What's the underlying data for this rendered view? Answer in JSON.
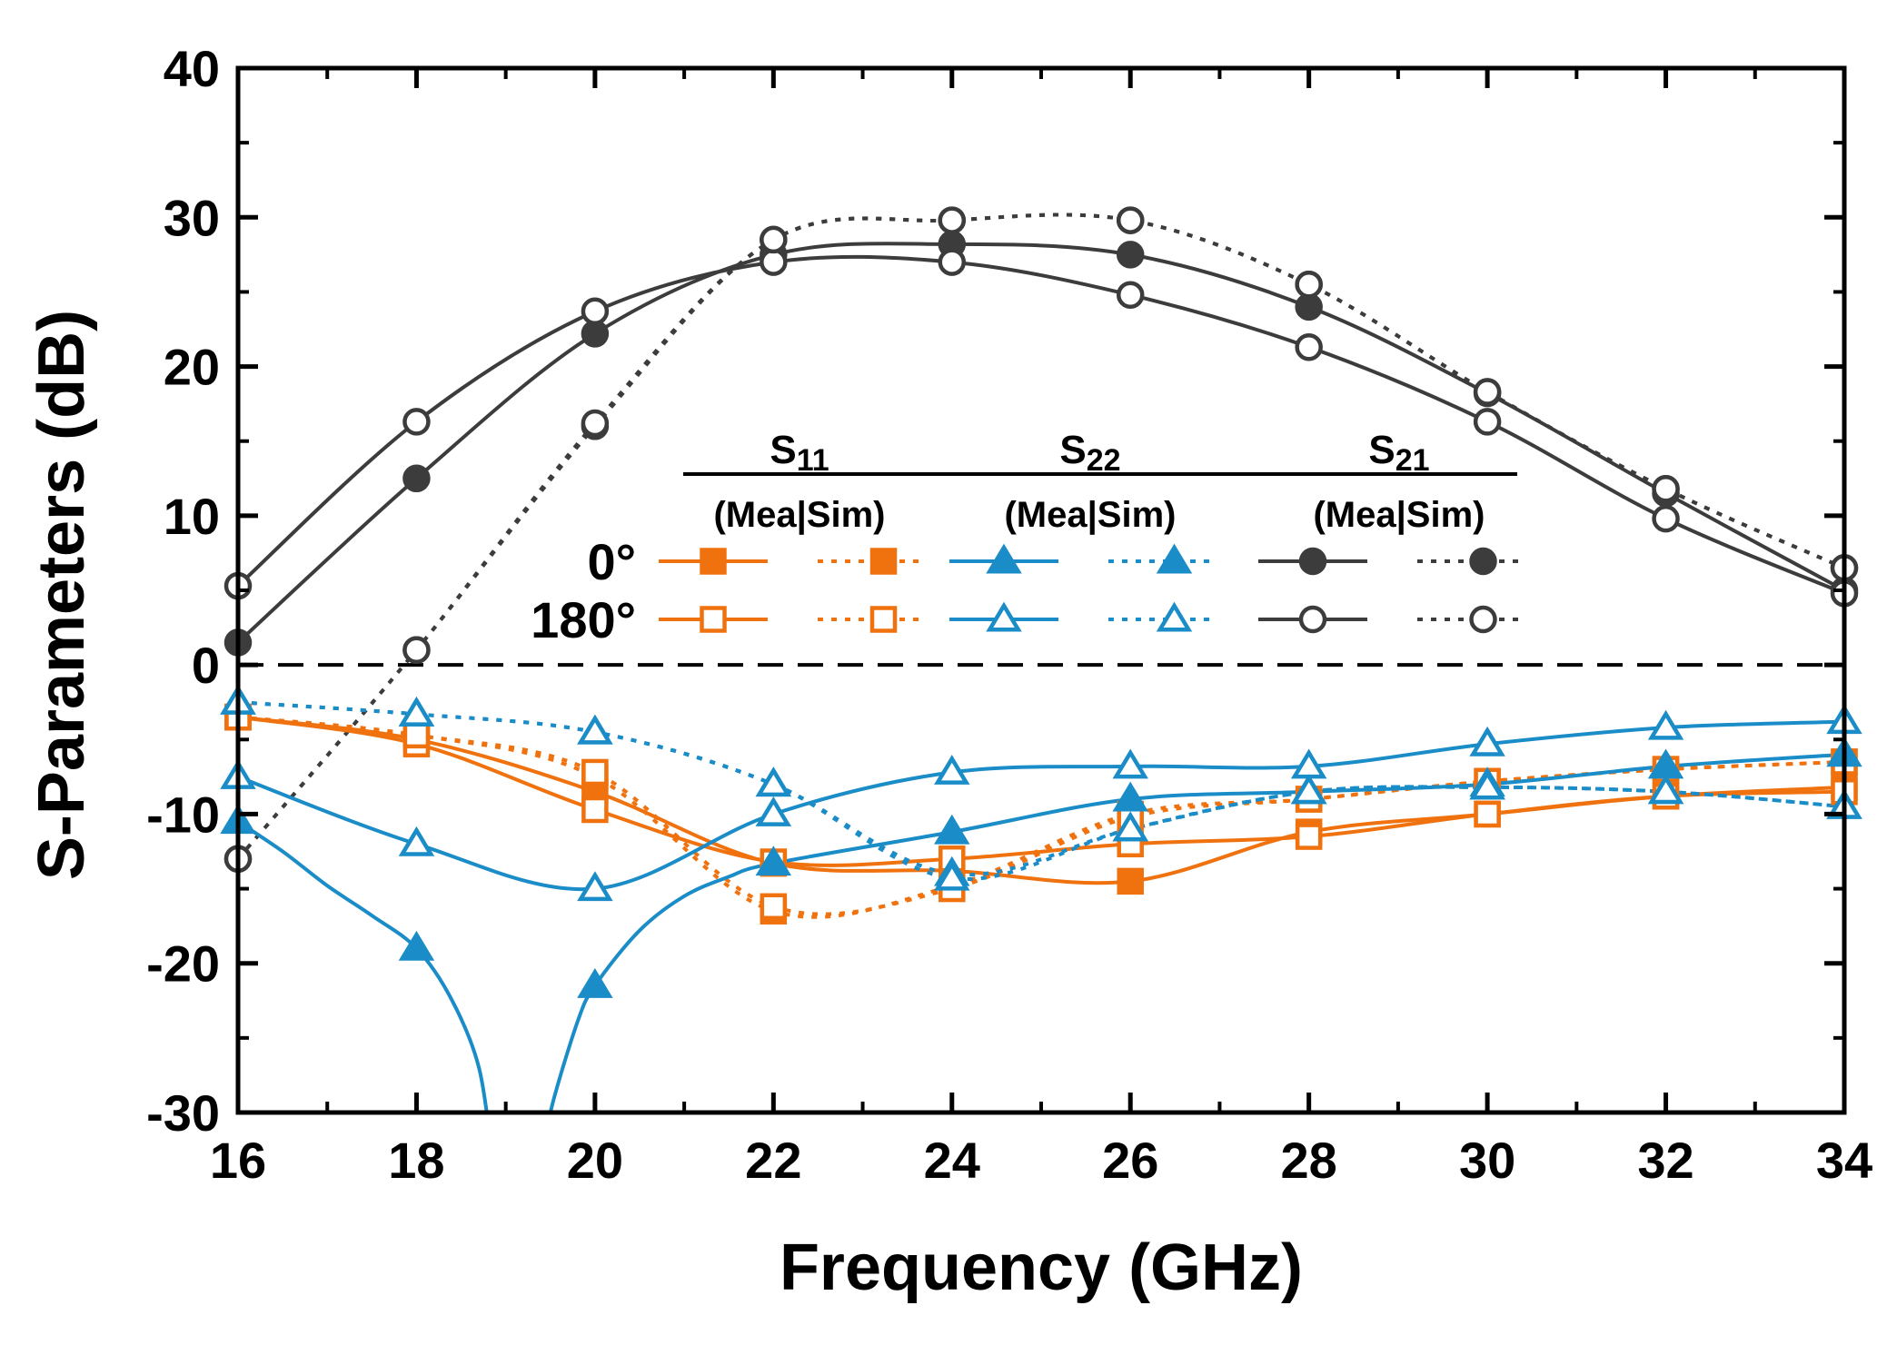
{
  "chart_data": {
    "type": "line",
    "xlabel": "Frequency (GHz)",
    "ylabel": "S-Parameters (dB)",
    "xlim": [
      16,
      34
    ],
    "ylim": [
      -30,
      40
    ],
    "xticks": [
      16,
      18,
      20,
      22,
      24,
      26,
      28,
      30,
      32,
      34
    ],
    "yticks": [
      -30,
      -20,
      -10,
      0,
      10,
      20,
      30,
      40
    ],
    "reference_line": {
      "y": 0,
      "style": "dashed"
    },
    "grid": false,
    "legend": {
      "placement": "center",
      "groups": [
        {
          "name": "S",
          "sub": "11",
          "color": "#f0720f",
          "marker": "square"
        },
        {
          "name": "S",
          "sub": "22",
          "color": "#1a8cc7",
          "marker": "triangle"
        },
        {
          "name": "S",
          "sub": "21",
          "color": "#3c3c3c",
          "marker": "circle"
        }
      ],
      "column_label": "(Mea|Sim)",
      "rows": [
        {
          "label": "0°",
          "filled": true
        },
        {
          "label": "180°",
          "filled": false
        }
      ]
    },
    "colors": {
      "s11": "#f0720f",
      "s22": "#1a8cc7",
      "s21": "#3c3c3c",
      "axis": "#000000"
    },
    "series": [
      {
        "param": "S21",
        "state": "0",
        "kind": "Mea",
        "color": "#3c3c3c",
        "marker": "circle",
        "filled": true,
        "dashed": false,
        "x": [
          16,
          18,
          20,
          22,
          24,
          26,
          28,
          30,
          32,
          34
        ],
        "y": [
          1.5,
          12.5,
          22.2,
          27.5,
          28.2,
          27.5,
          24.0,
          18.2,
          11.5,
          5.0
        ]
      },
      {
        "param": "S21",
        "state": "0",
        "kind": "Sim",
        "color": "#3c3c3c",
        "marker": "circle",
        "filled": true,
        "dashed": true,
        "x": [
          16,
          18,
          20,
          22,
          24,
          26,
          28,
          30,
          32,
          34
        ],
        "y": [
          -13.0,
          1.0,
          16.0,
          28.5,
          29.8,
          29.8,
          25.5,
          18.3,
          11.8,
          6.5
        ]
      },
      {
        "param": "S21",
        "state": "180",
        "kind": "Mea",
        "color": "#3c3c3c",
        "marker": "circle",
        "filled": false,
        "dashed": false,
        "x": [
          16,
          18,
          20,
          22,
          24,
          26,
          28,
          30,
          32,
          34
        ],
        "y": [
          5.3,
          16.3,
          23.7,
          27.0,
          27.0,
          24.8,
          21.3,
          16.3,
          9.8,
          4.8
        ]
      },
      {
        "param": "S21",
        "state": "180",
        "kind": "Sim",
        "color": "#3c3c3c",
        "marker": "circle",
        "filled": false,
        "dashed": true,
        "x": [
          16,
          18,
          20,
          22,
          24,
          26,
          28,
          30,
          32,
          34
        ],
        "y": [
          -13.0,
          1.0,
          16.2,
          28.5,
          29.8,
          29.8,
          25.5,
          18.3,
          11.8,
          6.5
        ]
      },
      {
        "param": "S11",
        "state": "0",
        "kind": "Mea",
        "color": "#f0720f",
        "marker": "square",
        "filled": true,
        "dashed": false,
        "x": [
          16,
          18,
          20,
          22,
          24,
          26,
          28,
          30,
          32,
          34
        ],
        "y": [
          -3.5,
          -5.0,
          -8.5,
          -13.3,
          -13.8,
          -14.5,
          -11.2,
          -10.0,
          -8.8,
          -8.2
        ]
      },
      {
        "param": "S11",
        "state": "0",
        "kind": "Sim",
        "color": "#f0720f",
        "marker": "square",
        "filled": true,
        "dashed": true,
        "x": [
          16,
          18,
          20,
          22,
          24,
          26,
          28,
          30,
          32,
          34
        ],
        "y": [
          -3.5,
          -4.7,
          -7.5,
          -16.5,
          -14.8,
          -10.0,
          -9.0,
          -7.8,
          -7.0,
          -6.5
        ]
      },
      {
        "param": "S11",
        "state": "180",
        "kind": "Mea",
        "color": "#f0720f",
        "marker": "square",
        "filled": false,
        "dashed": false,
        "x": [
          16,
          18,
          20,
          22,
          24,
          26,
          28,
          30,
          32,
          34
        ],
        "y": [
          -3.5,
          -5.3,
          -9.7,
          -13.2,
          -13.0,
          -12.0,
          -11.5,
          -10.0,
          -8.8,
          -8.5
        ]
      },
      {
        "param": "S11",
        "state": "180",
        "kind": "Sim",
        "color": "#f0720f",
        "marker": "square",
        "filled": false,
        "dashed": true,
        "x": [
          16,
          18,
          20,
          22,
          24,
          26,
          28,
          30,
          32,
          34
        ],
        "y": [
          -3.5,
          -4.7,
          -7.2,
          -16.2,
          -15.0,
          -10.2,
          -9.0,
          -7.8,
          -7.0,
          -6.5
        ]
      },
      {
        "param": "S22",
        "state": "0",
        "kind": "Mea",
        "color": "#1a8cc7",
        "marker": "triangle",
        "filled": true,
        "dashed": false,
        "x": [
          16,
          18,
          20,
          22,
          24,
          26,
          28,
          30,
          32,
          34
        ],
        "y": [
          -10.5,
          -19.0,
          -21.5,
          -13.3,
          -11.2,
          -9.0,
          -8.5,
          -8.0,
          -6.8,
          -6.0
        ]
      },
      {
        "param": "S22",
        "state": "0",
        "kind": "Sim",
        "color": "#1a8cc7",
        "marker": "triangle",
        "filled": true,
        "dashed": true,
        "x": [
          16,
          18,
          20,
          22,
          24,
          26,
          28,
          30,
          32,
          34
        ],
        "y": [
          -2.5,
          -3.3,
          -4.5,
          -8.0,
          -14.0,
          -11.0,
          -8.5,
          -8.2,
          -8.5,
          -9.5
        ]
      },
      {
        "param": "S22",
        "state": "180",
        "kind": "Mea",
        "color": "#1a8cc7",
        "marker": "triangle",
        "filled": false,
        "dashed": false,
        "x": [
          16,
          18,
          20,
          22,
          24,
          26,
          28,
          30,
          32,
          34
        ],
        "y": [
          -7.5,
          -12.0,
          -15.0,
          -10.0,
          -7.2,
          -6.8,
          -6.8,
          -5.3,
          -4.2,
          -3.8
        ]
      },
      {
        "param": "S22",
        "state": "180",
        "kind": "Sim",
        "color": "#1a8cc7",
        "marker": "triangle",
        "filled": false,
        "dashed": true,
        "x": [
          16,
          18,
          20,
          22,
          24,
          26,
          28,
          30,
          32,
          34
        ],
        "y": [
          -2.5,
          -3.3,
          -4.5,
          -8.0,
          -14.3,
          -11.0,
          -8.5,
          -8.2,
          -8.5,
          -9.5
        ]
      }
    ],
    "s22_mea_0_curve": {
      "note": "",
      "x": [
        16,
        16.5,
        17,
        17.5,
        18,
        18.4,
        18.7,
        19.5,
        19.8,
        20,
        20.5,
        21,
        21.5,
        22
      ],
      "y": [
        -10.5,
        -12.5,
        -14.8,
        -16.8,
        -19.0,
        -22.5,
        -27.0,
        -30.0,
        -24.0,
        -21.5,
        -17.8,
        -15.5,
        -14.2,
        -13.3
      ]
    }
  }
}
